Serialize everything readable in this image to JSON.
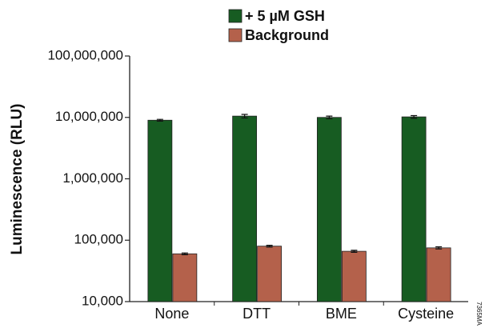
{
  "chart_data": {
    "type": "bar",
    "y_label": "Luminescence (RLU)",
    "categories": [
      "None",
      "DTT",
      "BME",
      "Cysteine"
    ],
    "series": [
      {
        "name": "+ 5 µM GSH",
        "color": "#175c22",
        "values": [
          9000000,
          10500000,
          10000000,
          10200000
        ],
        "errors": [
          300000,
          700000,
          500000,
          500000
        ]
      },
      {
        "name": "Background",
        "color": "#b4614b",
        "values": [
          60000,
          80000,
          66000,
          75000
        ],
        "errors": [
          2000,
          2500,
          2500,
          3000
        ]
      }
    ],
    "log_scale": true,
    "ylim": [
      10000,
      100000000
    ],
    "yticks": [
      {
        "value": 10000,
        "label": "10,000"
      },
      {
        "value": 100000,
        "label": "100,000"
      },
      {
        "value": 1000000,
        "label": "1,000,000"
      },
      {
        "value": 10000000,
        "label": "10,000,000"
      },
      {
        "value": 100000000,
        "label": "100,000,000"
      }
    ],
    "legend": "top",
    "note": "7365MA"
  }
}
